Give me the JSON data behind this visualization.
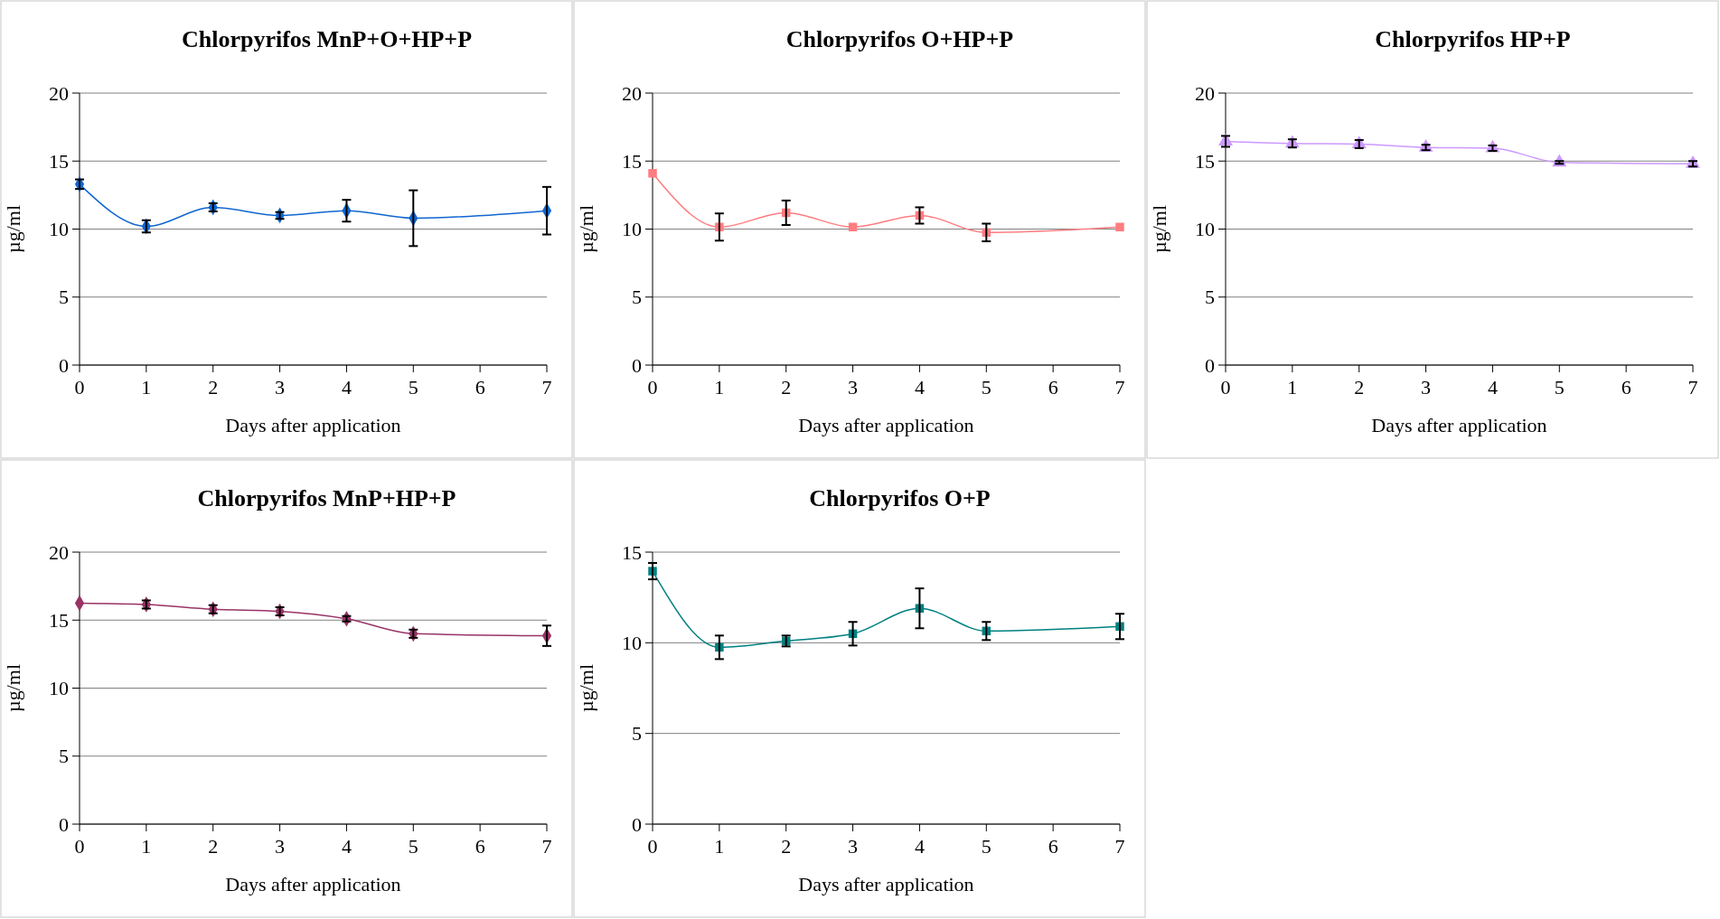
{
  "chart_data": [
    {
      "type": "line",
      "title": "Chlorpyrifos MnP+O+HP+P",
      "xlabel": "Days after application",
      "ylabel": "µg/ml",
      "x": [
        0,
        1,
        2,
        3,
        4,
        5,
        7
      ],
      "xlim": [
        0,
        7
      ],
      "xticks": [
        0,
        1,
        2,
        3,
        4,
        5,
        6,
        7
      ],
      "ylim": [
        0,
        20
      ],
      "yticks": [
        0,
        5,
        10,
        15,
        20
      ],
      "grid": "y",
      "marker": "diamond",
      "series": [
        {
          "color": "#1066d0",
          "values": [
            13.3,
            10.2,
            11.6,
            11.0,
            11.35,
            10.8,
            11.35
          ],
          "errors": [
            0.35,
            0.45,
            0.3,
            0.25,
            0.8,
            2.05,
            1.75
          ]
        }
      ]
    },
    {
      "type": "line",
      "title": "Chlorpyrifos O+HP+P",
      "xlabel": "Days after application",
      "ylabel": "µg/ml",
      "x": [
        0,
        1,
        2,
        3,
        4,
        5,
        7
      ],
      "xlim": [
        0,
        7
      ],
      "xticks": [
        0,
        1,
        2,
        3,
        4,
        5,
        6,
        7
      ],
      "ylim": [
        0,
        20
      ],
      "yticks": [
        0,
        5,
        10,
        15,
        20
      ],
      "grid": "y",
      "marker": "square",
      "series": [
        {
          "color": "#ff7c80",
          "values": [
            14.1,
            10.15,
            11.2,
            10.15,
            11.0,
            9.75,
            10.15
          ],
          "errors": [
            null,
            1.0,
            0.9,
            null,
            0.6,
            0.65,
            null
          ]
        }
      ]
    },
    {
      "type": "line",
      "title": "Chlorpyrifos HP+P",
      "xlabel": "Days after application",
      "ylabel": "µg/ml",
      "x": [
        0,
        1,
        2,
        3,
        4,
        5,
        7
      ],
      "xlim": [
        0,
        7
      ],
      "xticks": [
        0,
        1,
        2,
        3,
        4,
        5,
        6,
        7
      ],
      "ylim": [
        0,
        20
      ],
      "yticks": [
        0,
        5,
        10,
        15,
        20
      ],
      "grid": "y",
      "marker": "triangle",
      "series": [
        {
          "color": "#cc99ff",
          "values": [
            16.45,
            16.3,
            16.25,
            16.0,
            15.95,
            14.9,
            14.8
          ],
          "errors": [
            0.4,
            0.3,
            0.3,
            0.2,
            0.2,
            0.1,
            0.2
          ]
        }
      ]
    },
    {
      "type": "line",
      "title": "Chlorpyrifos MnP+HP+P",
      "xlabel": "Days after application",
      "ylabel": "µg/ml",
      "x": [
        0,
        1,
        2,
        3,
        4,
        5,
        7
      ],
      "xlim": [
        0,
        7
      ],
      "xticks": [
        0,
        1,
        2,
        3,
        4,
        5,
        6,
        7
      ],
      "ylim": [
        0,
        20
      ],
      "yticks": [
        0,
        5,
        10,
        15,
        20
      ],
      "grid": "y",
      "marker": "diamond",
      "series": [
        {
          "color": "#993366",
          "values": [
            16.25,
            16.15,
            15.8,
            15.65,
            15.1,
            14.0,
            13.85
          ],
          "errors": [
            null,
            0.3,
            0.3,
            0.3,
            0.2,
            0.3,
            0.75
          ]
        }
      ]
    },
    {
      "type": "line",
      "title": "Chlorpyrifos O+P",
      "xlabel": "Days after application",
      "ylabel": "µg/ml",
      "x": [
        0,
        1,
        2,
        3,
        4,
        5,
        7
      ],
      "xlim": [
        0,
        7
      ],
      "xticks": [
        0,
        1,
        2,
        3,
        4,
        5,
        6,
        7
      ],
      "ylim": [
        0,
        15
      ],
      "yticks": [
        0,
        5,
        10,
        15
      ],
      "grid": "y",
      "marker": "square",
      "series": [
        {
          "color": "#008080",
          "values": [
            13.95,
            9.75,
            10.1,
            10.5,
            11.9,
            10.65,
            10.9
          ],
          "errors": [
            0.45,
            0.65,
            0.3,
            0.65,
            1.1,
            0.5,
            0.7
          ]
        }
      ]
    }
  ]
}
